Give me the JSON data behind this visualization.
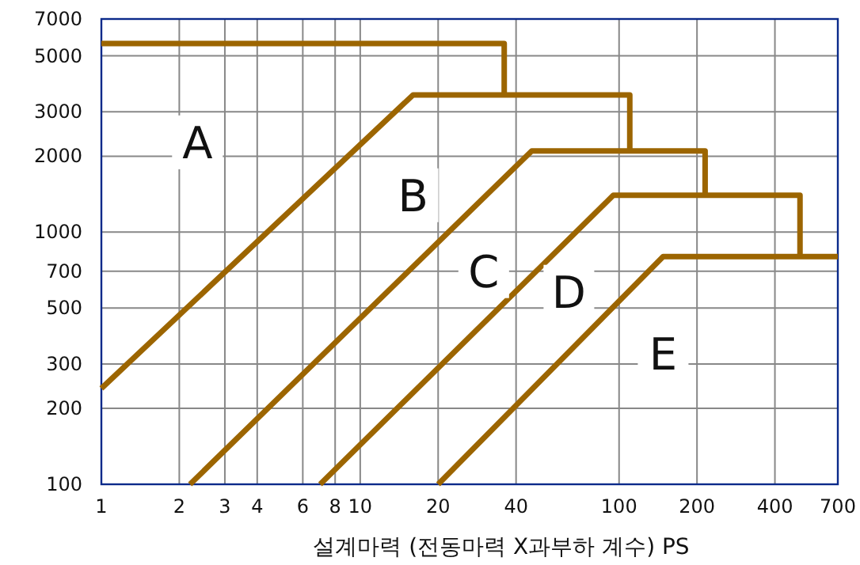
{
  "chart_data": {
    "type": "line",
    "xlabel": "설계마력 (전동마력 X과부하 계수) PS",
    "log": "xy",
    "xlim": [
      1,
      700
    ],
    "ylim": [
      100,
      7000
    ],
    "xticks": [
      1,
      2,
      3,
      4,
      6,
      8,
      10,
      20,
      40,
      100,
      200,
      400,
      700
    ],
    "yticks": [
      100,
      200,
      300,
      500,
      700,
      1000,
      2000,
      3000,
      5000,
      7000
    ],
    "grid": true,
    "marker": "none",
    "line_style": "solid",
    "series": [
      {
        "color": "#9c6500",
        "x": [
          1,
          36,
          36
        ],
        "values": [
          5600,
          5600,
          3500
        ]
      },
      {
        "color": "#9c6500",
        "x": [
          1,
          16,
          110,
          110
        ],
        "values": [
          240,
          3500,
          3500,
          2100
        ]
      },
      {
        "color": "#9c6500",
        "x": [
          2.2,
          46,
          215,
          215
        ],
        "values": [
          100,
          2100,
          2100,
          1400
        ]
      },
      {
        "color": "#9c6500",
        "x": [
          7,
          95,
          500,
          500
        ],
        "values": [
          100,
          1400,
          1400,
          800
        ]
      },
      {
        "color": "#9c6500",
        "x": [
          20,
          148,
          700
        ],
        "values": [
          100,
          800,
          800
        ]
      }
    ],
    "annotations": [
      {
        "text": "A",
        "x": 2.35,
        "y": 2270
      },
      {
        "text": "B",
        "x": 16,
        "y": 1400
      },
      {
        "text": "C",
        "x": 30,
        "y": 700
      },
      {
        "text": "D",
        "x": 64,
        "y": 580
      },
      {
        "text": "E",
        "x": 148,
        "y": 330
      }
    ]
  }
}
